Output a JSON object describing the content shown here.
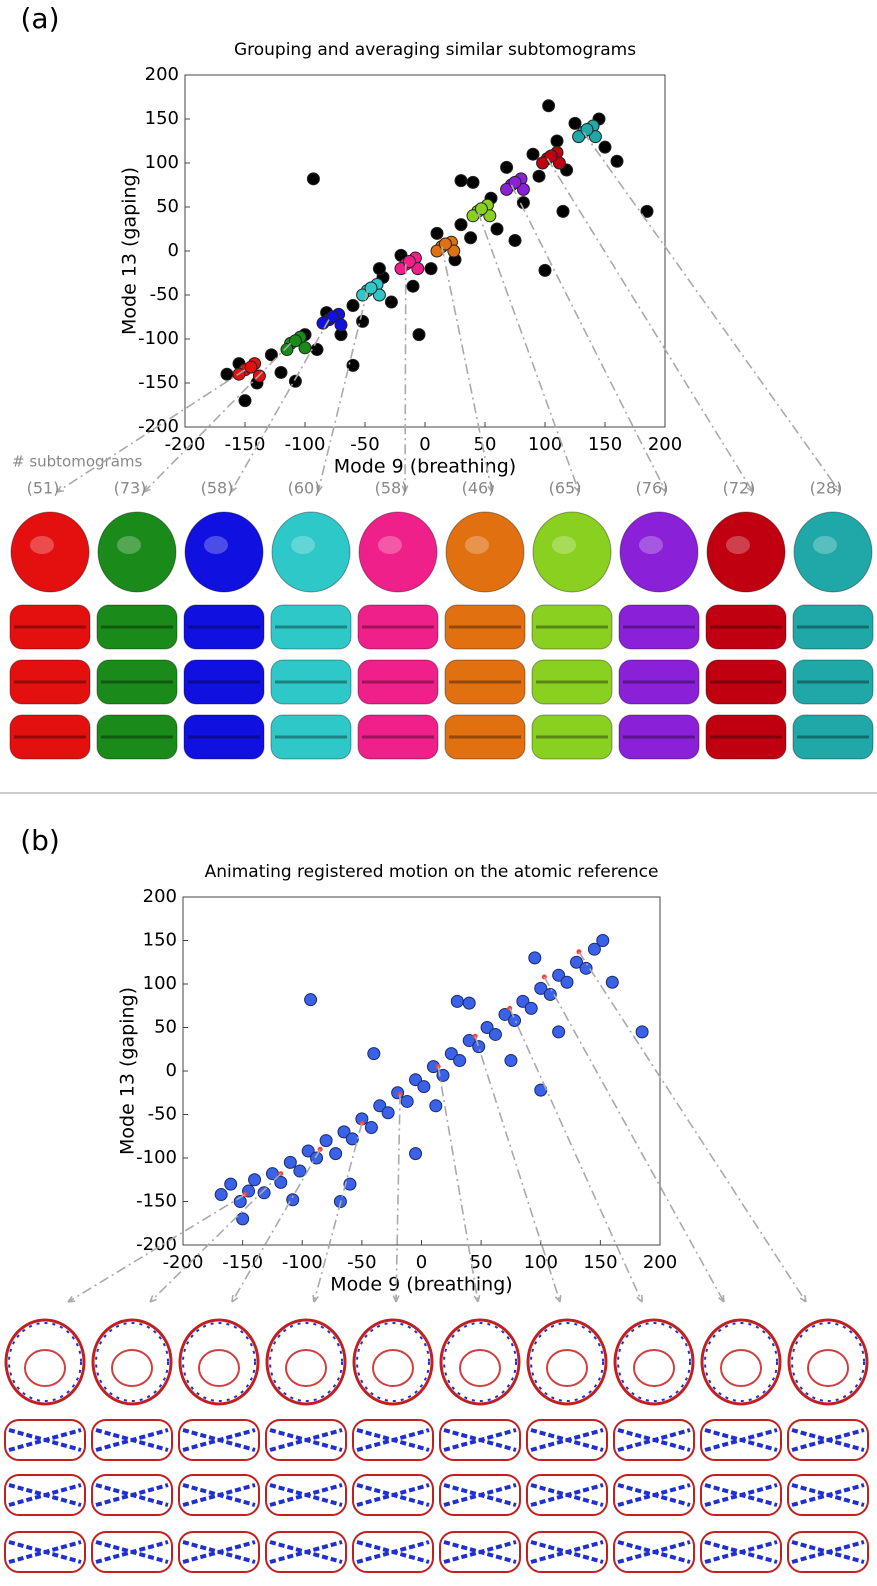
{
  "chart_data": [
    {
      "type": "scatter",
      "panel_label": "(a)",
      "title": "Grouping and averaging similar subtomograms",
      "x_label": "Mode 9 (breathing)",
      "y_label": "Mode 13 (gaping)",
      "xlim": [
        -200,
        200
      ],
      "ylim": [
        -200,
        200
      ],
      "xticks": [
        -200,
        -150,
        -100,
        -50,
        0,
        50,
        100,
        150,
        200
      ],
      "yticks": [
        -200,
        -150,
        -100,
        -50,
        0,
        50,
        100,
        150,
        200
      ],
      "series": [
        {
          "color": "#000000",
          "x": [
            -165,
            -155,
            -140,
            -128,
            -120,
            -100,
            -90,
            -82,
            -70,
            -60,
            -52,
            -35,
            -28,
            -20,
            -10,
            5,
            10,
            25,
            30,
            38,
            55,
            60,
            68,
            82,
            90,
            95,
            110,
            118,
            125,
            145,
            150,
            103,
            -93,
            185,
            100,
            160,
            30,
            40,
            -5,
            -150,
            75,
            115,
            -60,
            -108,
            -38
          ],
          "y": [
            -140,
            -128,
            -150,
            -118,
            -138,
            -95,
            -112,
            -70,
            -95,
            -62,
            -80,
            -30,
            -58,
            -5,
            -40,
            -20,
            20,
            -10,
            30,
            15,
            60,
            25,
            95,
            55,
            110,
            85,
            125,
            92,
            145,
            150,
            118,
            165,
            82,
            45,
            -22,
            102,
            80,
            78,
            -95,
            -170,
            12,
            45,
            -130,
            -148,
            -20
          ]
        },
        {
          "color": "#e41010",
          "x": [
            -150,
            -142,
            -138,
            -155,
            -145
          ],
          "y": [
            -135,
            -128,
            -142,
            -140,
            -132
          ]
        },
        {
          "color": "#1a8a1a",
          "x": [
            -112,
            -104,
            -100,
            -115,
            -108
          ],
          "y": [
            -105,
            -98,
            -110,
            -112,
            -102
          ]
        },
        {
          "color": "#1010e0",
          "x": [
            -80,
            -72,
            -70,
            -85,
            -77
          ],
          "y": [
            -78,
            -72,
            -84,
            -82,
            -75
          ]
        },
        {
          "color": "#2ec8c8",
          "x": [
            -48,
            -40,
            -38,
            -52,
            -45
          ],
          "y": [
            -45,
            -38,
            -50,
            -50,
            -42
          ]
        },
        {
          "color": "#f0208a",
          "x": [
            -16,
            -8,
            -6,
            -20,
            -13
          ],
          "y": [
            -15,
            -8,
            -20,
            -20,
            -12
          ]
        },
        {
          "color": "#e07010",
          "x": [
            14,
            22,
            24,
            10,
            17
          ],
          "y": [
            5,
            10,
            0,
            0,
            8
          ]
        },
        {
          "color": "#8ad020",
          "x": [
            44,
            52,
            54,
            40,
            47
          ],
          "y": [
            45,
            52,
            40,
            40,
            48
          ]
        },
        {
          "color": "#8a20d8",
          "x": [
            72,
            80,
            82,
            68,
            75
          ],
          "y": [
            75,
            82,
            70,
            70,
            78
          ]
        },
        {
          "color": "#c00010",
          "x": [
            102,
            110,
            112,
            98,
            105
          ],
          "y": [
            105,
            112,
            100,
            100,
            108
          ]
        },
        {
          "color": "#20a8a8",
          "x": [
            132,
            140,
            142,
            128,
            135
          ],
          "y": [
            135,
            142,
            130,
            130,
            138
          ]
        }
      ],
      "groups": {
        "title": "# subtomograms",
        "counts": [
          {
            "value": 51,
            "label": "(51)"
          },
          {
            "value": 73,
            "label": "(73)"
          },
          {
            "value": 58,
            "label": "(58)"
          },
          {
            "value": 60,
            "label": "(60)"
          },
          {
            "value": 58,
            "label": "(58)"
          },
          {
            "value": 46,
            "label": "(46)"
          },
          {
            "value": 65,
            "label": "(65)"
          },
          {
            "value": 76,
            "label": "(76)"
          },
          {
            "value": 72,
            "label": "(72)"
          },
          {
            "value": 28,
            "label": "(28)"
          }
        ]
      }
    },
    {
      "type": "scatter",
      "panel_label": "(b)",
      "title": "Animating registered motion on the atomic reference",
      "x_label": "Mode 9 (breathing)",
      "y_label": "Mode 13 (gaping)",
      "xlim": [
        -200,
        200
      ],
      "ylim": [
        -200,
        200
      ],
      "xticks": [
        -200,
        -150,
        -100,
        -50,
        0,
        50,
        100,
        150,
        200
      ],
      "yticks": [
        -200,
        -150,
        -100,
        -50,
        0,
        50,
        100,
        150,
        200
      ],
      "series": [
        {
          "color": "#3a62e8",
          "x": [
            -168,
            -160,
            -152,
            -145,
            -140,
            -132,
            -125,
            -118,
            -110,
            -102,
            -95,
            -88,
            -80,
            -72,
            -65,
            -58,
            -50,
            -42,
            -35,
            -28,
            -20,
            -12,
            -5,
            2,
            10,
            18,
            25,
            32,
            40,
            48,
            55,
            62,
            70,
            78,
            85,
            92,
            100,
            108,
            115,
            122,
            130,
            138,
            145,
            152,
            -93,
            185,
            100,
            160,
            30,
            40,
            -5,
            -150,
            75,
            115,
            -60,
            -108,
            -40,
            -68,
            12,
            95
          ],
          "y": [
            -142,
            -130,
            -150,
            -138,
            -125,
            -140,
            -118,
            -128,
            -105,
            -115,
            -92,
            -100,
            -80,
            -95,
            -70,
            -78,
            -55,
            -65,
            -40,
            -48,
            -25,
            -35,
            -10,
            -18,
            5,
            -5,
            20,
            12,
            35,
            28,
            50,
            42,
            65,
            58,
            80,
            72,
            95,
            88,
            110,
            102,
            125,
            118,
            140,
            150,
            82,
            45,
            -22,
            102,
            80,
            78,
            -95,
            -170,
            12,
            45,
            -130,
            -148,
            20,
            -150,
            -40,
            130
          ]
        },
        {
          "color": "#ff4040",
          "x": [
            -148,
            -118,
            -85,
            -50,
            -18,
            14,
            45,
            74,
            103,
            132
          ],
          "y": [
            -142,
            -118,
            -90,
            -60,
            -27,
            5,
            40,
            72,
            108,
            137
          ]
        }
      ]
    }
  ]
}
